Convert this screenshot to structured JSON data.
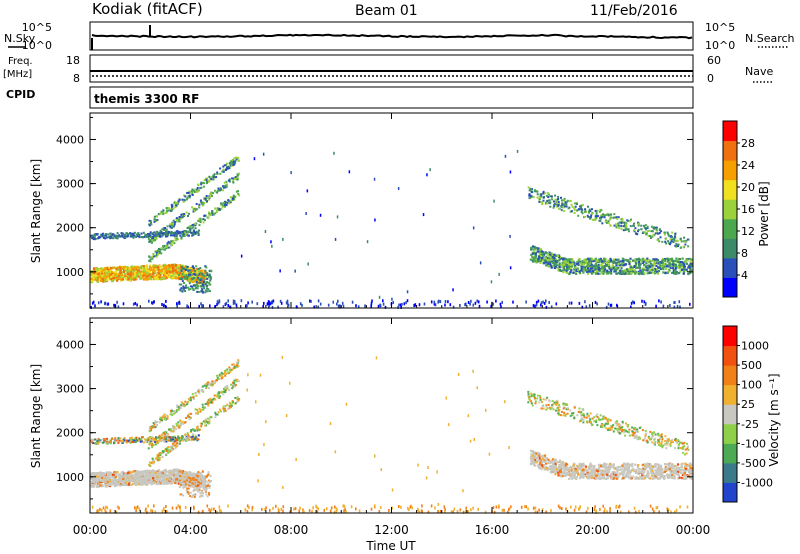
{
  "header": {
    "radar": "Kodiak (fitACF)",
    "beam": "Beam 01",
    "date": "11/Feb/2016"
  },
  "side_labels": {
    "nsky": "N.Sky",
    "freq": "Freq.",
    "mhz": "[MHz]",
    "cpid": "CPID",
    "nsearch": "N.Search",
    "nave": "Nave",
    "top_left_hi": "10^5",
    "top_left_lo": "10^0",
    "top_right_hi": "10^5",
    "top_right_lo": "10^0",
    "freq_hi": "18",
    "freq_lo": "8",
    "nave_hi": "60",
    "nave_lo": "0"
  },
  "cpid_text": "themis 3300 RF",
  "chart_data": [
    {
      "type": "heatmap",
      "panel": "power",
      "ylabel": "Slant Range [km]",
      "xlabel": "Time UT",
      "ylim": [
        180,
        4600
      ],
      "yticks": [
        "1000",
        "2000",
        "3000",
        "4000"
      ],
      "ytick_values": [
        1000,
        2000,
        3000,
        4000
      ],
      "xticks": [
        "00:00",
        "04:00",
        "08:00",
        "12:00",
        "16:00",
        "20:00",
        "00:00"
      ],
      "xtick_hours": [
        0,
        4,
        8,
        12,
        16,
        20,
        24
      ],
      "colorbar": {
        "label": "Power [dB]",
        "ticks": [
          "4",
          "8",
          "12",
          "16",
          "20",
          "24",
          "28"
        ],
        "tick_values": [
          4,
          8,
          12,
          16,
          20,
          24,
          28
        ],
        "range": [
          0,
          32
        ],
        "colors": [
          "#0000ff",
          "#2a4fb8",
          "#3c8a6a",
          "#4ca84e",
          "#9bd23a",
          "#f0e020",
          "#f5a000",
          "#f07010",
          "#ff0000"
        ]
      },
      "features": [
        {
          "name": "main band",
          "t": [
            0,
            4.5
          ],
          "range": [
            850,
            1200
          ],
          "power": 22
        },
        {
          "name": "upper band",
          "t": [
            0,
            4.5
          ],
          "range": [
            1750,
            1900
          ],
          "power": 8
        },
        {
          "name": "rising arc",
          "t": [
            2.5,
            5.8
          ],
          "range": [
            2000,
            3400
          ],
          "power": 12
        },
        {
          "name": "evening arc",
          "t": [
            17.5,
            24
          ],
          "range": [
            1000,
            2800
          ],
          "power": 10
        }
      ]
    },
    {
      "type": "heatmap",
      "panel": "velocity",
      "ylabel": "Slant Range [km]",
      "xlabel": "Time UT",
      "ylim": [
        180,
        4600
      ],
      "yticks": [
        "1000",
        "2000",
        "3000",
        "4000"
      ],
      "ytick_values": [
        1000,
        2000,
        3000,
        4000
      ],
      "xticks": [
        "00:00",
        "04:00",
        "08:00",
        "12:00",
        "16:00",
        "20:00",
        "00:00"
      ],
      "xtick_hours": [
        0,
        4,
        8,
        12,
        16,
        20,
        24
      ],
      "colorbar": {
        "label": "Velocity [m s⁻¹]",
        "ticks": [
          "1000",
          "500",
          "100",
          "25",
          "-25",
          "-100",
          "-500",
          "-1000"
        ],
        "colors": [
          "#2244cc",
          "#3a7a8a",
          "#4caa55",
          "#8fd04a",
          "#c8c8c0",
          "#f0b030",
          "#f08018",
          "#f05010",
          "#ff0000"
        ]
      },
      "features": [
        {
          "name": "ground scatter",
          "t": [
            0,
            4.6
          ],
          "range": [
            850,
            1300
          ],
          "velocity": 0
        },
        {
          "name": "evening ground scatter",
          "t": [
            17.8,
            24
          ],
          "range": [
            1000,
            1550
          ],
          "velocity": 0
        },
        {
          "name": "arc",
          "t": [
            2.5,
            5.8
          ],
          "range": [
            2000,
            3400
          ],
          "velocity": -100
        }
      ]
    }
  ]
}
